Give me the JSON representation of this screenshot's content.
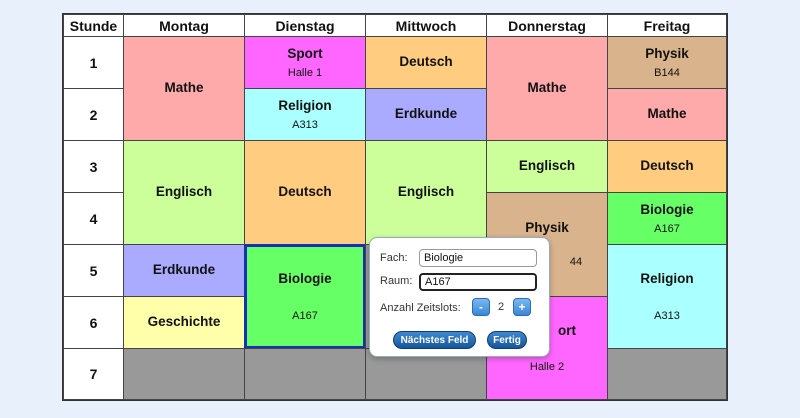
{
  "header": {
    "hour_label": "Stunde",
    "days": [
      "Montag",
      "Dienstag",
      "Mittwoch",
      "Donnerstag",
      "Freitag"
    ]
  },
  "hours": [
    "1",
    "2",
    "3",
    "4",
    "5",
    "6",
    "7"
  ],
  "entries": {
    "mo_mathe": {
      "subject": "Mathe",
      "room": ""
    },
    "mo_englisch": {
      "subject": "Englisch",
      "room": ""
    },
    "mo_erdkunde": {
      "subject": "Erdkunde",
      "room": ""
    },
    "mo_geschichte": {
      "subject": "Geschichte",
      "room": ""
    },
    "di_sport": {
      "subject": "Sport",
      "room": "Halle 1"
    },
    "di_religion": {
      "subject": "Religion",
      "room": "A313"
    },
    "di_deutsch": {
      "subject": "Deutsch",
      "room": ""
    },
    "di_biologie": {
      "subject": "Biologie",
      "room": "A167"
    },
    "mi_deutsch": {
      "subject": "Deutsch",
      "room": ""
    },
    "mi_erdkunde": {
      "subject": "Erdkunde",
      "room": ""
    },
    "mi_englisch": {
      "subject": "Englisch",
      "room": ""
    },
    "do_mathe": {
      "subject": "Mathe",
      "room": ""
    },
    "do_englisch": {
      "subject": "Englisch",
      "room": ""
    },
    "do_physik": {
      "subject": "Physik",
      "room": "44"
    },
    "do_sport": {
      "subject": "ort",
      "room": "Halle 2"
    },
    "fr_physik": {
      "subject": "Physik",
      "room": "B144"
    },
    "fr_mathe": {
      "subject": "Mathe",
      "room": ""
    },
    "fr_deutsch": {
      "subject": "Deutsch",
      "room": ""
    },
    "fr_biologie": {
      "subject": "Biologie",
      "room": "A167"
    },
    "fr_religion": {
      "subject": "Religion",
      "room": "A313"
    }
  },
  "colors": {
    "mathe": "#ffaaaa",
    "englisch": "#ccff99",
    "erdkunde": "#aaaaff",
    "geschichte": "#ffffaa",
    "sport": "#ff66ff",
    "religion": "#aaffff",
    "deutsch": "#ffcc80",
    "biologie": "#66ff66",
    "physik": "#d9b38c",
    "empty": "#999999"
  },
  "editor": {
    "fach_label": "Fach:",
    "fach_value": "Biologie",
    "raum_label": "Raum:",
    "raum_value": "A167",
    "slots_label": "Anzahl Zeitslots:",
    "minus_label": "-",
    "slots_value": "2",
    "plus_label": "+",
    "next_label": "Nächstes Feld",
    "done_label": "Fertig"
  }
}
